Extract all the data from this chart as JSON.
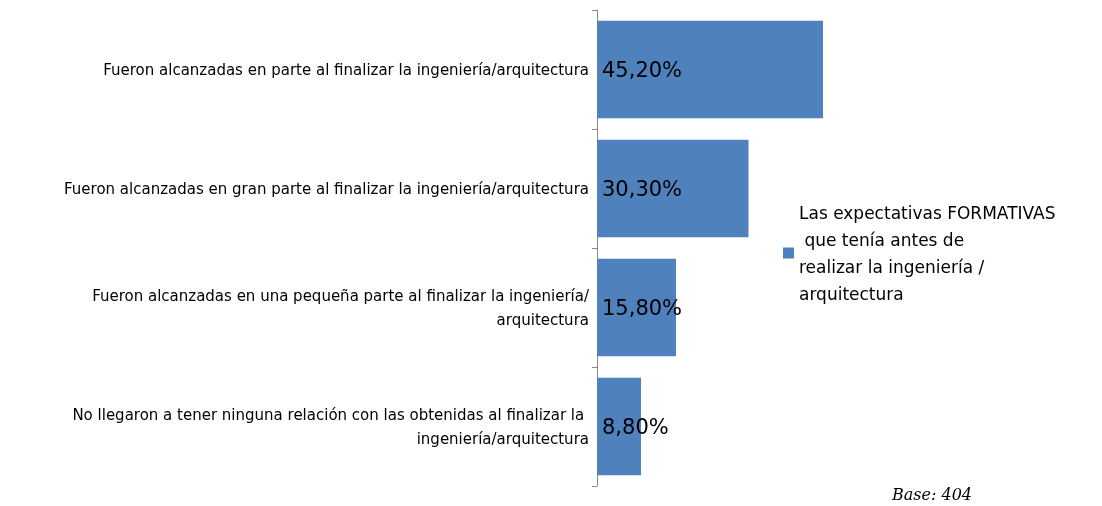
{
  "chart_data": {
    "type": "bar",
    "orientation": "horizontal",
    "categories": [
      "Fueron alcanzadas en parte al finalizar la ingeniería/arquitectura",
      "Fueron alcanzadas en gran parte al finalizar la ingeniería/arquitectura",
      "Fueron alcanzadas en una pequeña parte al finalizar la ingeniería/arquitectura",
      "No llegaron a tener ninguna relación con las obtenidas al finalizar la ingeniería/arquitectura"
    ],
    "series": [
      {
        "name": "Las expectativas FORMATIVAS que tenía antes de realizar la ingeniería / arquitectura",
        "color": "#4f81bd",
        "values": [
          45.2,
          30.3,
          15.8,
          8.8
        ],
        "value_labels": [
          "45,20%",
          "30,30%",
          "15,80%",
          "8,80%"
        ]
      }
    ],
    "legend": "right",
    "grid": false,
    "annotations": [
      "Base: 404"
    ]
  }
}
